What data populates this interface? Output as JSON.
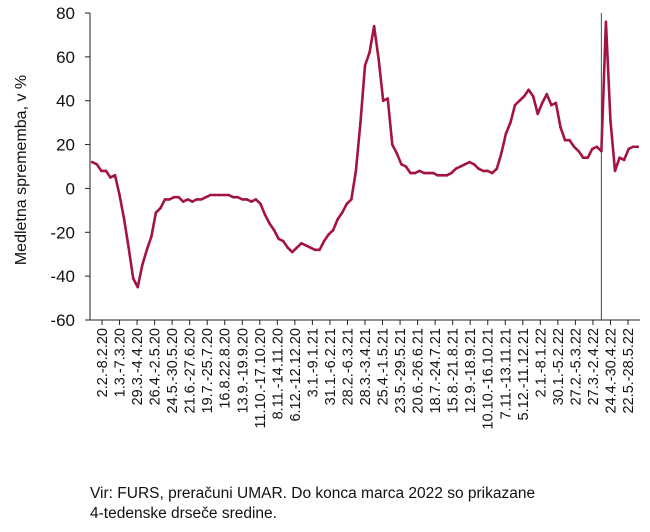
{
  "chart_data": {
    "type": "line",
    "title": "",
    "xlabel": "",
    "ylabel": "Medletna sprememba, v %",
    "ylim": [
      -60,
      80
    ],
    "yticks": [
      -60,
      -40,
      -20,
      0,
      20,
      40,
      60,
      80
    ],
    "grid": false,
    "legend": "none",
    "x_ticks": [
      "2.2.-8.2.20",
      "1.3.-7.3.20",
      "29.3.-4.4.20",
      "26.4.-2.5.20",
      "24.5.-30.5.20",
      "21.6.-27.6.20",
      "19.7.-25.7.20",
      "16.8.22.8.20",
      "13.9.-19.9.20",
      "11.10.-17.10.20",
      "8.11.-14.11.20",
      "6.12.-12.12.20",
      "3.1.-9.1.21",
      "31.1.-6.2.21",
      "28.2.-6.3.21",
      "28.3.-3.4.21",
      "25.4.-1.5.21",
      "23.5.-29.5.21",
      "20.6.-26.6.21",
      "18.7.-24.7.21",
      "15.8.-21.8.21",
      "12.9.-18.9.21",
      "10.10.-16.10.21",
      "7.11.-13.11.21",
      "5.12.-11.12.21",
      "2.1.-8.1.22",
      "30.1.-5.2.22",
      "27.2.-5.3.22",
      "27.3.-2.4.22",
      "24.4.-30.4.22",
      "22.5.-28.5.22"
    ],
    "series": [
      {
        "values": [
          12,
          11,
          8,
          8,
          5,
          6,
          -3,
          -14,
          -27,
          -41,
          -45,
          -35,
          -28,
          -22,
          -11,
          -9,
          -5,
          -5,
          -4,
          -4,
          -6,
          -5,
          -6,
          -5,
          -5,
          -4,
          -3,
          -3,
          -3,
          -3,
          -3,
          -4,
          -4,
          -5,
          -5,
          -6,
          -5,
          -7,
          -12,
          -16,
          -19,
          -23,
          -24,
          -27,
          -29,
          -27,
          -25,
          -26,
          -27,
          -28,
          -28,
          -24,
          -21,
          -19,
          -14,
          -11,
          -7,
          -5,
          8,
          30,
          56,
          62,
          74,
          59,
          40,
          41,
          20,
          16,
          11,
          10,
          7,
          7,
          8,
          7,
          7,
          7,
          6,
          6,
          6,
          7,
          9,
          10,
          11,
          12,
          11,
          9,
          8,
          8,
          7,
          9,
          16,
          25,
          30,
          38,
          40,
          42,
          45,
          42,
          34,
          39,
          43,
          38,
          39,
          28,
          22,
          22,
          19,
          17,
          14,
          14,
          18,
          19,
          17,
          76,
          31,
          8,
          14,
          13,
          18,
          19,
          19
        ],
        "color": "#a3153f"
      }
    ],
    "vertical_marker_index": 112
  },
  "source_lines": [
    "Vir: FURS, preračuni UMAR. Do konca marca 2022 so prikazane",
    "4-tedenske drseče sredine."
  ]
}
